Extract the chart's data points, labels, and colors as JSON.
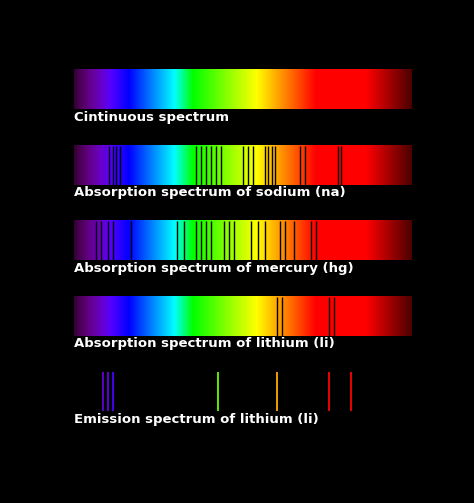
{
  "background_color": "#000000",
  "figure_size": [
    4.74,
    5.03
  ],
  "dpi": 100,
  "spectra": [
    {
      "label": "Cintinuous spectrum",
      "type": "continuous",
      "lines": []
    },
    {
      "label": "Absorption spectrum of sodium (na)",
      "type": "absorption",
      "lines": [
        0.105,
        0.115,
        0.125,
        0.135,
        0.36,
        0.375,
        0.39,
        0.405,
        0.42,
        0.435,
        0.5,
        0.515,
        0.53,
        0.565,
        0.575,
        0.585,
        0.595,
        0.67,
        0.685,
        0.78,
        0.79
      ]
    },
    {
      "label": "Absorption spectrum of mercury (hg)",
      "type": "absorption",
      "lines": [
        0.065,
        0.08,
        0.1,
        0.115,
        0.17,
        0.305,
        0.325,
        0.36,
        0.375,
        0.39,
        0.405,
        0.445,
        0.46,
        0.475,
        0.525,
        0.545,
        0.565,
        0.61,
        0.625,
        0.65,
        0.7,
        0.715
      ]
    },
    {
      "label": "Absorption spectrum of lithium (li)",
      "type": "absorption",
      "lines": [
        0.6,
        0.615,
        0.755,
        0.77
      ]
    },
    {
      "label": "Emission spectrum of lithium (li)",
      "type": "emission",
      "lines": [
        0.085,
        0.1,
        0.115,
        0.425,
        0.6,
        0.755,
        0.82
      ]
    }
  ],
  "label_fontsize": 9.5,
  "label_color": "#ffffff",
  "label_fontweight": "bold"
}
